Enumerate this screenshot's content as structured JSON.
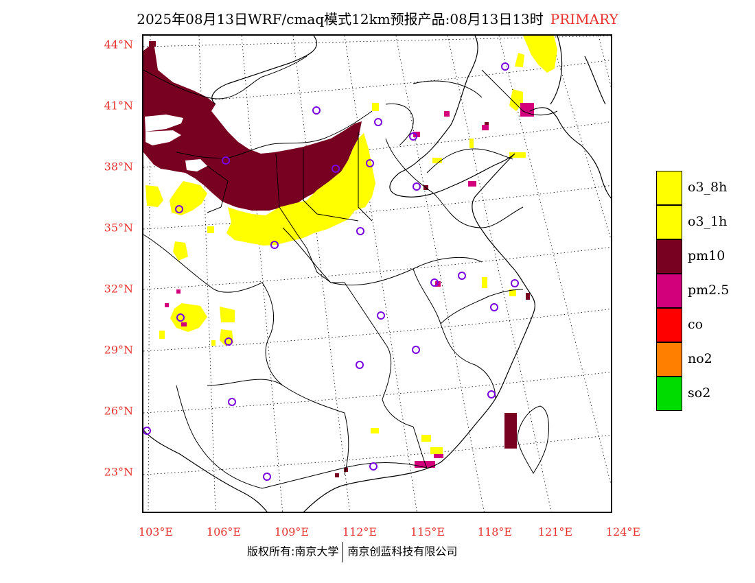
{
  "title": {
    "text": "2025年08月13日WRF/cmaq模式12km预报产品:08月13日13时",
    "tag": "PRIMARY"
  },
  "axes": {
    "latitudes": [
      "44°N",
      "41°N",
      "38°N",
      "35°N",
      "32°N",
      "29°N",
      "26°N",
      "23°N"
    ],
    "longitudes": [
      "103°E",
      "106°E",
      "109°E",
      "112°E",
      "115°E",
      "118°E",
      "121°E",
      "124°E"
    ]
  },
  "legend": {
    "items": [
      {
        "label": "o3_8h",
        "color": "#ffff00"
      },
      {
        "label": "o3_1h",
        "color": "#ffff00"
      },
      {
        "label": "pm10",
        "color": "#780020"
      },
      {
        "label": "pm2.5",
        "color": "#d2007a"
      },
      {
        "label": "co",
        "color": "#ff0000"
      },
      {
        "label": "no2",
        "color": "#ff8000"
      },
      {
        "label": "so2",
        "color": "#00dc00"
      }
    ]
  },
  "copyright": {
    "left": "版权所有:南京大学",
    "right": "南京创蓝科技有限公司"
  },
  "colors": {
    "pm10": "#780020",
    "ozone": "#ffff00",
    "pm25": "#d2007a",
    "station": "#7a00e0",
    "axis_label": "#e8322e"
  }
}
